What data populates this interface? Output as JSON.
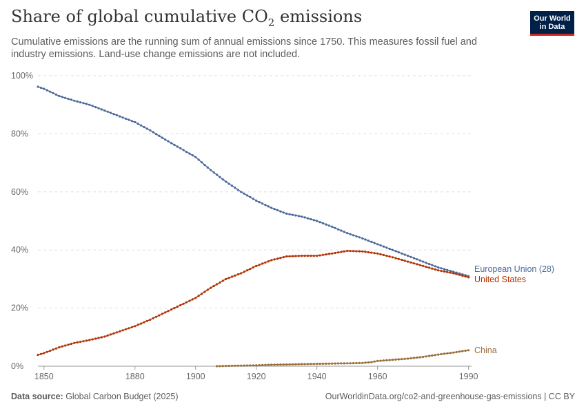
{
  "header": {
    "title_main": "Share of global cumulative CO",
    "title_sub": "2",
    "title_end": " emissions",
    "subtitle_line1": "Cumulative emissions are the running sum of annual emissions since 1750. This measures fossil fuel and",
    "subtitle_line2": "industry emissions. Land-use change emissions are not included."
  },
  "logo": {
    "line1": "Our World",
    "line2": "in Data"
  },
  "footer": {
    "source_label": "Data source:",
    "source_value": " Global Carbon Budget (2025)",
    "right": "OurWorldinData.org/co2-and-greenhouse-gas-emissions | CC BY"
  },
  "chart_data": {
    "type": "line",
    "xlim": [
      1848,
      1991
    ],
    "ylim": [
      0,
      100
    ],
    "x_ticks": [
      1850,
      1880,
      1900,
      1920,
      1940,
      1960,
      1990
    ],
    "y_ticks": [
      0,
      20,
      40,
      60,
      80,
      100
    ],
    "y_tick_labels": [
      "0%",
      "20%",
      "40%",
      "60%",
      "80%",
      "100%"
    ],
    "grid": true,
    "series": [
      {
        "name": "European Union (28)",
        "color": "#4c6a9c",
        "points": [
          [
            1848,
            96.2
          ],
          [
            1850,
            95.5
          ],
          [
            1855,
            93.0
          ],
          [
            1860,
            91.4
          ],
          [
            1865,
            90.0
          ],
          [
            1870,
            88.0
          ],
          [
            1875,
            86.0
          ],
          [
            1880,
            84.0
          ],
          [
            1885,
            81.2
          ],
          [
            1890,
            78.0
          ],
          [
            1895,
            75.0
          ],
          [
            1900,
            72.0
          ],
          [
            1905,
            67.5
          ],
          [
            1910,
            63.5
          ],
          [
            1915,
            60.0
          ],
          [
            1920,
            57.0
          ],
          [
            1925,
            54.5
          ],
          [
            1930,
            52.5
          ],
          [
            1935,
            51.5
          ],
          [
            1940,
            50.0
          ],
          [
            1945,
            48.0
          ],
          [
            1950,
            45.8
          ],
          [
            1955,
            44.0
          ],
          [
            1960,
            42.0
          ],
          [
            1965,
            40.0
          ],
          [
            1970,
            38.0
          ],
          [
            1975,
            36.0
          ],
          [
            1980,
            34.0
          ],
          [
            1985,
            32.5
          ],
          [
            1990,
            31.0
          ]
        ]
      },
      {
        "name": "United States",
        "color": "#b13507",
        "points": [
          [
            1848,
            3.9
          ],
          [
            1850,
            4.5
          ],
          [
            1855,
            6.5
          ],
          [
            1860,
            8.0
          ],
          [
            1865,
            9.0
          ],
          [
            1870,
            10.2
          ],
          [
            1875,
            12.0
          ],
          [
            1880,
            13.8
          ],
          [
            1885,
            16.0
          ],
          [
            1890,
            18.5
          ],
          [
            1895,
            21.0
          ],
          [
            1900,
            23.5
          ],
          [
            1905,
            27.0
          ],
          [
            1910,
            30.0
          ],
          [
            1915,
            32.0
          ],
          [
            1920,
            34.5
          ],
          [
            1925,
            36.5
          ],
          [
            1930,
            37.8
          ],
          [
            1935,
            38.0
          ],
          [
            1940,
            38.0
          ],
          [
            1945,
            38.8
          ],
          [
            1950,
            39.7
          ],
          [
            1955,
            39.5
          ],
          [
            1960,
            38.8
          ],
          [
            1965,
            37.5
          ],
          [
            1970,
            36.0
          ],
          [
            1975,
            34.5
          ],
          [
            1980,
            33.0
          ],
          [
            1985,
            32.0
          ],
          [
            1990,
            30.6
          ]
        ]
      },
      {
        "name": "China",
        "color": "#9a6f3b",
        "points": [
          [
            1907,
            0.0
          ],
          [
            1910,
            0.1
          ],
          [
            1915,
            0.2
          ],
          [
            1920,
            0.3
          ],
          [
            1925,
            0.5
          ],
          [
            1930,
            0.6
          ],
          [
            1935,
            0.7
          ],
          [
            1940,
            0.8
          ],
          [
            1945,
            0.9
          ],
          [
            1950,
            1.0
          ],
          [
            1955,
            1.1
          ],
          [
            1958,
            1.4
          ],
          [
            1960,
            1.8
          ],
          [
            1965,
            2.2
          ],
          [
            1970,
            2.6
          ],
          [
            1975,
            3.2
          ],
          [
            1980,
            4.0
          ],
          [
            1985,
            4.7
          ],
          [
            1990,
            5.5
          ]
        ]
      }
    ]
  }
}
